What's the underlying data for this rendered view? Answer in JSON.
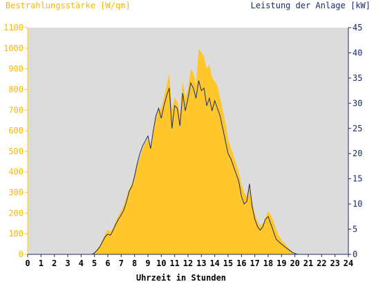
{
  "chart_data": {
    "type": "area",
    "y_left_label": "Bestrahlungsstärke [W/qm]",
    "y_right_label": "Leistung der Anlage [kW]",
    "xlabel": "Uhrzeit in Stunden",
    "xlim": [
      0,
      24
    ],
    "ylim_left": [
      0,
      1100
    ],
    "ylim_right": [
      0,
      45
    ],
    "x_ticks": [
      "0",
      "1",
      "2",
      "3",
      "4",
      "5",
      "6",
      "7",
      "8",
      "9",
      "10",
      "11",
      "12",
      "13",
      "14",
      "15",
      "16",
      "17",
      "18",
      "19",
      "20",
      "21",
      "22",
      "23",
      "24"
    ],
    "y_left_ticks": [
      "0",
      "100",
      "200",
      "300",
      "400",
      "500",
      "600",
      "700",
      "800",
      "900",
      "1000",
      "1100"
    ],
    "y_right_ticks": [
      "0",
      "5",
      "10",
      "15",
      "20",
      "25",
      "30",
      "35",
      "40",
      "45"
    ],
    "grid": false,
    "plot_background": "#dcdcdc",
    "series": [
      {
        "name": "Bestrahlungsstärke [W/qm]",
        "axis": "left",
        "style": "area",
        "color": "#ffc72c",
        "x": [
          0,
          4.8,
          5.0,
          5.2,
          5.4,
          5.6,
          5.8,
          6.0,
          6.2,
          6.4,
          6.6,
          6.8,
          7.0,
          7.2,
          7.4,
          7.6,
          7.8,
          8.0,
          8.2,
          8.4,
          8.6,
          8.8,
          9.0,
          9.2,
          9.4,
          9.6,
          9.8,
          10.0,
          10.2,
          10.4,
          10.6,
          10.8,
          11.0,
          11.2,
          11.4,
          11.6,
          11.8,
          12.0,
          12.2,
          12.4,
          12.6,
          12.8,
          13.0,
          13.2,
          13.4,
          13.6,
          13.8,
          14.0,
          14.2,
          14.4,
          14.6,
          14.8,
          15.0,
          15.2,
          15.4,
          15.6,
          15.8,
          16.0,
          16.2,
          16.4,
          16.6,
          16.8,
          17.0,
          17.2,
          17.4,
          17.6,
          17.8,
          18.0,
          18.2,
          18.4,
          18.6,
          18.8,
          19.0,
          19.2,
          19.4,
          19.6,
          19.8,
          20.0,
          20.2,
          24
        ],
        "values": [
          0,
          0,
          10,
          25,
          45,
          70,
          100,
          120,
          110,
          130,
          160,
          190,
          210,
          240,
          280,
          320,
          340,
          380,
          430,
          470,
          510,
          540,
          560,
          520,
          600,
          660,
          700,
          710,
          760,
          820,
          880,
          700,
          760,
          740,
          680,
          840,
          760,
          800,
          900,
          880,
          820,
          1000,
          980,
          960,
          900,
          920,
          860,
          840,
          820,
          760,
          700,
          640,
          560,
          520,
          480,
          440,
          400,
          340,
          300,
          280,
          340,
          260,
          200,
          160,
          140,
          150,
          180,
          210,
          190,
          160,
          120,
          90,
          70,
          55,
          40,
          25,
          12,
          5,
          0,
          0
        ]
      },
      {
        "name": "Leistung der Anlage [kW]",
        "axis": "right",
        "style": "line",
        "color": "#1a2a66",
        "x": [
          0,
          4.8,
          5.0,
          5.2,
          5.4,
          5.6,
          5.8,
          6.0,
          6.2,
          6.4,
          6.6,
          6.8,
          7.0,
          7.2,
          7.4,
          7.6,
          7.8,
          8.0,
          8.2,
          8.4,
          8.6,
          8.8,
          9.0,
          9.2,
          9.4,
          9.6,
          9.8,
          10.0,
          10.2,
          10.4,
          10.6,
          10.8,
          11.0,
          11.2,
          11.4,
          11.6,
          11.8,
          12.0,
          12.2,
          12.4,
          12.6,
          12.8,
          13.0,
          13.2,
          13.4,
          13.6,
          13.8,
          14.0,
          14.2,
          14.4,
          14.6,
          14.8,
          15.0,
          15.2,
          15.4,
          15.6,
          15.8,
          16.0,
          16.2,
          16.4,
          16.6,
          16.8,
          17.0,
          17.2,
          17.4,
          17.6,
          17.8,
          18.0,
          18.2,
          18.4,
          18.6,
          18.8,
          19.0,
          19.2,
          19.4,
          19.6,
          19.8,
          20.0,
          20.2,
          24
        ],
        "values": [
          0,
          0,
          0.3,
          0.8,
          1.5,
          2.5,
          3.5,
          4.0,
          3.8,
          4.8,
          6.0,
          7.0,
          7.8,
          8.8,
          10.5,
          12.5,
          13.5,
          15.5,
          18.0,
          20.0,
          21.5,
          22.5,
          23.5,
          21.0,
          24.5,
          27.5,
          29.0,
          27.0,
          29.5,
          31.5,
          33.0,
          25.0,
          29.5,
          29.0,
          25.5,
          32.0,
          28.5,
          31.0,
          34.0,
          33.0,
          31.0,
          34.5,
          32.5,
          33.0,
          29.5,
          31.0,
          28.5,
          30.5,
          29.0,
          27.5,
          25.0,
          22.5,
          20.0,
          19.0,
          17.5,
          16.0,
          14.5,
          11.5,
          10.0,
          10.5,
          14.0,
          9.5,
          7.0,
          5.5,
          4.8,
          5.5,
          7.0,
          7.5,
          6.0,
          4.5,
          3.0,
          2.5,
          2.0,
          1.6,
          1.2,
          0.8,
          0.4,
          0.2,
          0,
          0
        ]
      }
    ]
  }
}
